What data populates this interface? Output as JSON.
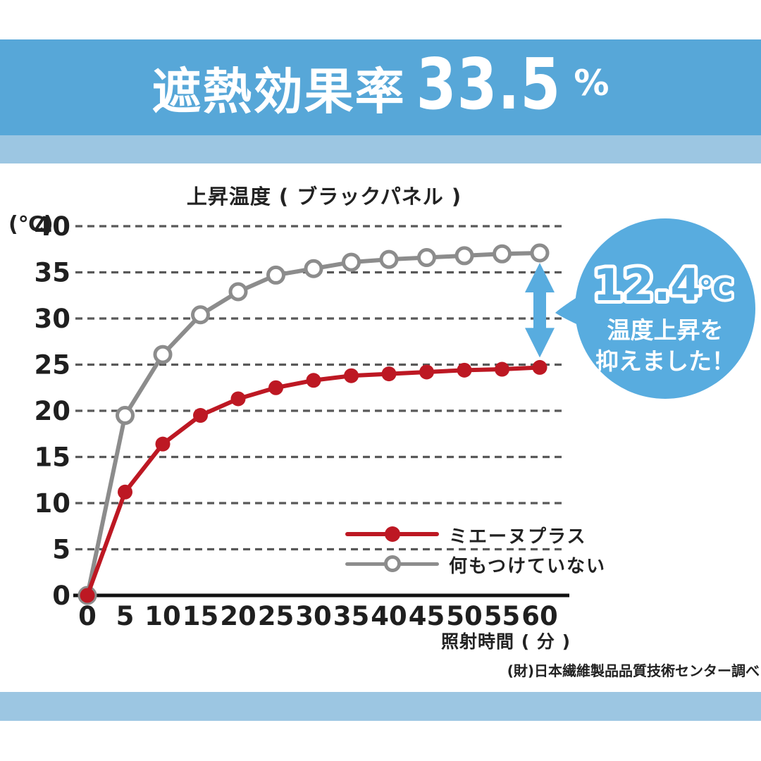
{
  "header": {
    "title_prefix": "遮熱効果率",
    "title_number": "33.5",
    "title_unit": "%",
    "band_color": "#57a7d8",
    "strip_color": "#9cc6e2"
  },
  "footer": {
    "source_note": "(財)日本繊維製品品質技術センター調べ"
  },
  "callout": {
    "value": "12.4",
    "unit": "℃",
    "line1": "温度上昇を",
    "line2": "抑えました！",
    "bubble_color": "#58acdf",
    "arrow_color": "#58acdf"
  },
  "chart_data": {
    "type": "line",
    "title": "上昇温度 ( ブラックパネル )",
    "xlabel": "照射時間 ( 分 )",
    "ylabel": "(℃)",
    "x": [
      0,
      5,
      10,
      15,
      20,
      25,
      30,
      35,
      40,
      45,
      50,
      55,
      60
    ],
    "x_ticks": [
      "0",
      "5",
      "10",
      "15",
      "20",
      "25",
      "30",
      "35",
      "40",
      "45",
      "50",
      "55",
      "60"
    ],
    "y_ticks": [
      40,
      35,
      30,
      25,
      20,
      15,
      10,
      5,
      0
    ],
    "ylim": [
      0,
      40
    ],
    "xlim": [
      0,
      60
    ],
    "grid": "dashed-horizontal",
    "legend_position": "inside-bottom-right",
    "series": [
      {
        "name": "ミエーヌプラス",
        "color": "#bd1823",
        "marker": "filled-circle",
        "values": [
          0,
          11.2,
          16.4,
          19.5,
          21.3,
          22.5,
          23.3,
          23.8,
          24.0,
          24.2,
          24.4,
          24.5,
          24.7
        ]
      },
      {
        "name": "何もつけていない",
        "color": "#8c8c8c",
        "marker": "open-circle",
        "values": [
          0,
          19.5,
          26.1,
          30.4,
          32.9,
          34.7,
          35.4,
          36.1,
          36.4,
          36.6,
          36.8,
          37.0,
          37.1
        ]
      }
    ],
    "annotation": {
      "at_x": 60,
      "difference": 12.4,
      "text": "12.4℃ 温度上昇を抑えました！"
    }
  }
}
